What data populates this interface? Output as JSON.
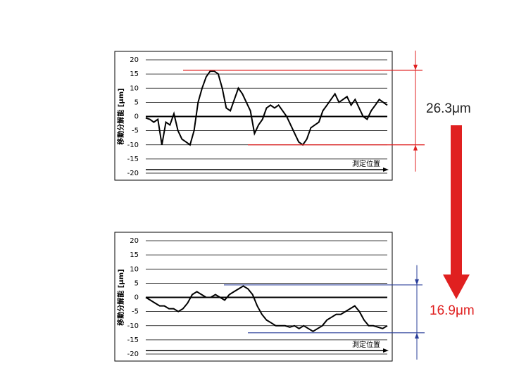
{
  "chart_data": [
    {
      "type": "line",
      "ylabel": "移動分解能 [μm]",
      "xlabel": "測定位置",
      "ylim": [
        -20,
        20
      ],
      "yticks": [
        -20,
        -15,
        -10,
        -5,
        0,
        5,
        10,
        15,
        20
      ],
      "grid": true,
      "color": "#000000",
      "categories": [
        null,
        null,
        null,
        null,
        null,
        null,
        null,
        null,
        null,
        null,
        null,
        null,
        null,
        null,
        null,
        null,
        null,
        null,
        null,
        null,
        null,
        null,
        null,
        null,
        null,
        null,
        null,
        null,
        null,
        null,
        null,
        null,
        null,
        null,
        null,
        null,
        null,
        null,
        null,
        null,
        null,
        null,
        null,
        null,
        null,
        null,
        null,
        null,
        null,
        null,
        null,
        null,
        null,
        null,
        null,
        null,
        null,
        null,
        null,
        null,
        null
      ],
      "values": [
        -0.5,
        -1,
        -2,
        -1,
        -10,
        -2,
        -3,
        1,
        -5,
        -8,
        -9,
        -10,
        -5,
        5,
        10,
        14,
        16,
        16,
        15,
        10,
        3,
        2,
        6,
        10,
        8,
        5,
        2,
        -6,
        -3,
        -1,
        3,
        4,
        3,
        4,
        2,
        0,
        -3,
        -6,
        -9,
        -10,
        -8,
        -4,
        -3,
        -2,
        2,
        4,
        6,
        8,
        5,
        6,
        7,
        4,
        6,
        3,
        0,
        -1,
        2,
        4,
        6,
        5,
        4
      ],
      "range": {
        "max": 16.3,
        "min": -10,
        "label": "26.3μm",
        "color": "#e02020",
        "text_color": "#222222"
      }
    },
    {
      "type": "line",
      "ylabel": "移動分解能 [μm]",
      "xlabel": "測定位置",
      "ylim": [
        -20,
        20
      ],
      "yticks": [
        -20,
        -15,
        -10,
        -5,
        0,
        5,
        10,
        15,
        20
      ],
      "grid": true,
      "color": "#000000",
      "categories": [
        null,
        null,
        null,
        null,
        null,
        null,
        null,
        null,
        null,
        null,
        null,
        null,
        null,
        null,
        null,
        null,
        null,
        null,
        null,
        null,
        null,
        null,
        null,
        null,
        null,
        null,
        null,
        null,
        null,
        null,
        null,
        null,
        null,
        null,
        null,
        null,
        null,
        null,
        null,
        null,
        null,
        null,
        null,
        null,
        null,
        null,
        null,
        null,
        null,
        null,
        null,
        null,
        null
      ],
      "values": [
        0,
        -1,
        -2,
        -3,
        -3,
        -4,
        -4,
        -5,
        -4,
        -2,
        1,
        2,
        1,
        0,
        0,
        1,
        0,
        -1,
        1,
        2,
        3,
        4,
        3,
        1,
        -3,
        -6,
        -8,
        -9,
        -10,
        -10,
        -10,
        -10.5,
        -10,
        -11,
        -10,
        -11,
        -12,
        -11,
        -10,
        -8,
        -7,
        -6,
        -6,
        -5,
        -4,
        -3,
        -5,
        -8,
        -10,
        -10,
        -10.5,
        -11,
        -10
      ],
      "range": {
        "max": 4.4,
        "min": -12.5,
        "label": "16.9μm",
        "color": "#2a3f9a",
        "text_color": "#e02020"
      }
    }
  ]
}
